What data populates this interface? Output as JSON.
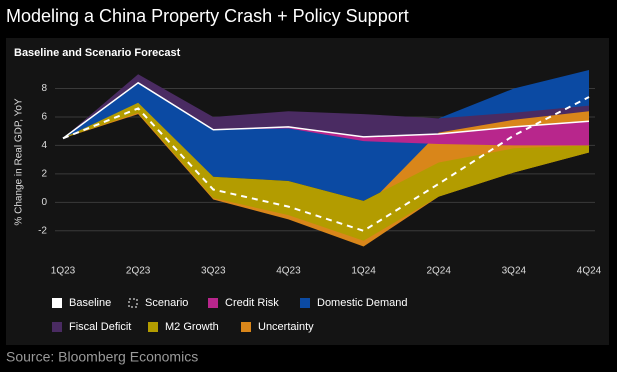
{
  "title": "Modeling a China Property Crash + Policy Support",
  "source": "Source: Bloomberg Economics",
  "chart_data": {
    "type": "fan",
    "title": "Baseline and Scenario Forecast",
    "y_label": "% Change in Real GDP, YoY",
    "categories": [
      "1Q23",
      "2Q23",
      "3Q23",
      "4Q23",
      "1Q24",
      "2Q24",
      "3Q24",
      "4Q24"
    ],
    "ylim": [
      -3.7,
      9.3
    ],
    "yticks": [
      -2,
      0,
      2,
      4,
      6,
      8
    ],
    "grid": true,
    "series": [
      {
        "name": "Domestic Demand",
        "type": "band",
        "color": "#0b4aa3",
        "low": [
          4.5,
          6.5,
          1.8,
          1.5,
          0.1,
          2.8,
          3.8,
          4.0
        ],
        "high": [
          4.5,
          8.4,
          5.1,
          5.3,
          4.6,
          5.9,
          8.0,
          9.3
        ]
      },
      {
        "name": "Fiscal Deficit",
        "type": "band",
        "color": "#4a2b62",
        "low": [
          4.5,
          8.4,
          5.1,
          5.3,
          4.6,
          4.8,
          5.3,
          5.7
        ],
        "high": [
          4.5,
          9.0,
          6.0,
          6.4,
          6.2,
          5.9,
          6.3,
          6.8
        ]
      },
      {
        "name": "Uncertainty",
        "type": "band",
        "color": "#d9861a",
        "low": [
          4.5,
          6.2,
          0.2,
          -1.2,
          -3.1,
          0.4,
          2.1,
          3.5
        ],
        "high": [
          4.5,
          6.9,
          1.6,
          1.0,
          -0.5,
          4.9,
          5.8,
          6.4
        ]
      },
      {
        "name": "M2 Growth",
        "type": "band",
        "color": "#b39c00",
        "low": [
          4.5,
          6.3,
          0.3,
          -0.9,
          -2.7,
          0.4,
          2.1,
          3.5
        ],
        "high": [
          4.5,
          7.0,
          1.8,
          1.5,
          0.1,
          2.8,
          3.8,
          4.0
        ]
      },
      {
        "name": "Credit Risk",
        "type": "band",
        "color": "#b8268c",
        "low": [
          4.5,
          8.4,
          5.1,
          5.2,
          4.3,
          4.1,
          4.0,
          4.0
        ],
        "high": [
          4.5,
          8.4,
          5.1,
          5.3,
          4.6,
          4.8,
          5.3,
          5.7
        ]
      },
      {
        "name": "Baseline",
        "type": "line",
        "color": "#ffffff",
        "values": [
          4.5,
          8.4,
          5.1,
          5.3,
          4.6,
          4.8,
          5.3,
          5.7
        ]
      },
      {
        "name": "Scenario",
        "type": "dashed",
        "color": "#ffffff",
        "values": [
          4.5,
          6.6,
          0.9,
          -0.3,
          -2.0,
          1.3,
          4.7,
          7.4
        ]
      }
    ],
    "legend_order": [
      5,
      6,
      4,
      0,
      1,
      3,
      2
    ]
  }
}
